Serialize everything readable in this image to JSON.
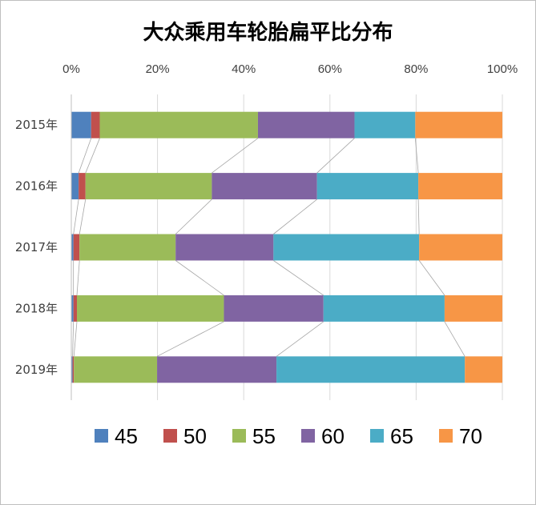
{
  "chart_data": {
    "type": "bar",
    "orientation": "horizontal",
    "stacked": "percent",
    "title": "大众乘用车轮胎扁平比分布",
    "categories": [
      "2015年",
      "2016年",
      "2017年",
      "2018年",
      "2019年"
    ],
    "x_ticks": [
      "0%",
      "20%",
      "40%",
      "60%",
      "80%",
      "100%"
    ],
    "xlim": [
      0,
      100
    ],
    "grid": true,
    "legend_position": "bottom",
    "series_lines": true,
    "series": [
      {
        "name": "45",
        "color": "#4f81bd",
        "values": [
          4.6,
          1.7,
          0.5,
          0.5,
          0.3
        ]
      },
      {
        "name": "50",
        "color": "#c0504d",
        "values": [
          2.0,
          1.6,
          1.4,
          0.8,
          0.3
        ]
      },
      {
        "name": "55",
        "color": "#9bbb59",
        "values": [
          36.7,
          29.3,
          22.3,
          34.1,
          19.3
        ]
      },
      {
        "name": "60",
        "color": "#8064a2",
        "values": [
          22.4,
          24.4,
          22.7,
          23.1,
          27.7
        ]
      },
      {
        "name": "65",
        "color": "#4bacc6",
        "values": [
          14.1,
          23.5,
          33.8,
          28.1,
          43.7
        ]
      },
      {
        "name": "70",
        "color": "#f79646",
        "values": [
          20.2,
          19.5,
          19.3,
          13.4,
          8.7
        ]
      }
    ]
  }
}
